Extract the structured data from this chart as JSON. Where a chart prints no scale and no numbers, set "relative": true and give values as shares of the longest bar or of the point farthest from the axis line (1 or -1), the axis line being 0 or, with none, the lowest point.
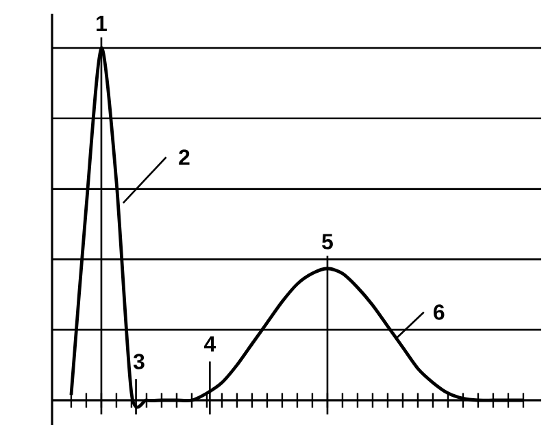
{
  "chart_data": {
    "type": "line",
    "relative": true,
    "grid": "y",
    "marker": "none",
    "color": "#000000",
    "categories": [
      null,
      null,
      null,
      null,
      null,
      null,
      null,
      null,
      null,
      null,
      null,
      null,
      null,
      null,
      null,
      null,
      null,
      null,
      null,
      null,
      null,
      null,
      null,
      null,
      null,
      null,
      null,
      null,
      null,
      null,
      null
    ],
    "values": [
      0.015,
      0.55,
      1,
      0.62,
      0.02,
      0,
      0,
      0,
      0,
      0.02,
      0.05,
      0.1,
      0.16,
      0.22,
      0.28,
      0.33,
      0.36,
      0.374,
      0.36,
      0.32,
      0.27,
      0.21,
      0.15,
      0.09,
      0.05,
      0.02,
      0.005,
      0,
      0,
      0,
      0
    ],
    "annotations": [
      "1",
      "2",
      "3",
      "4",
      "5",
      "6"
    ]
  }
}
